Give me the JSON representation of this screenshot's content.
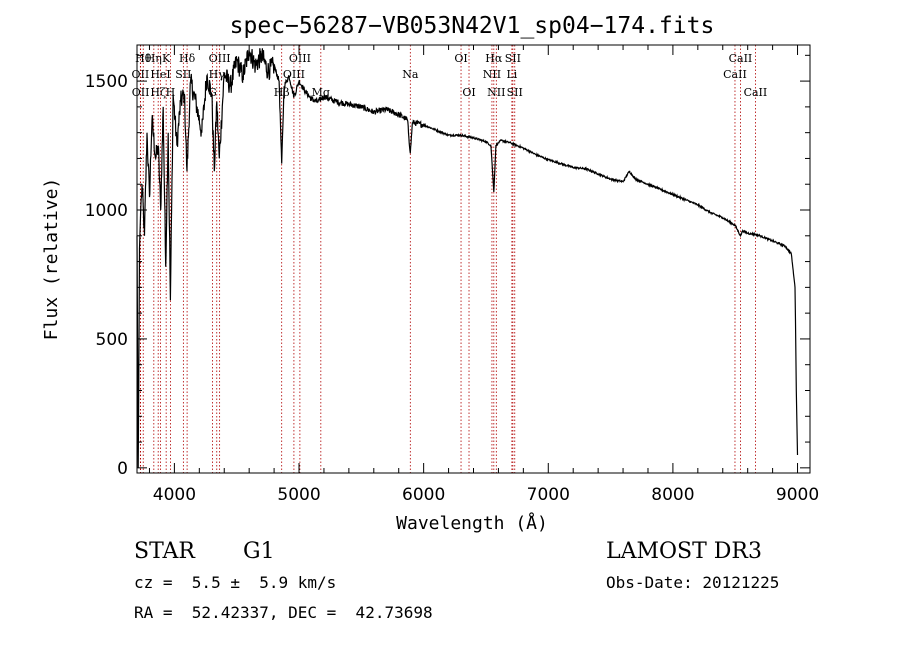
{
  "chart_data": {
    "type": "line",
    "title": "spec−56287−VB053N42V1_sp04−174.fits",
    "xlabel": "Wavelength (Å)",
    "ylabel": "Flux (relative)",
    "xlim": [
      3700,
      9100
    ],
    "ylim": [
      -20,
      1640
    ],
    "x_ticks": [
      4000,
      5000,
      6000,
      7000,
      8000,
      9000
    ],
    "y_ticks": [
      0,
      500,
      1000,
      1500
    ],
    "x_tick_labels": [
      "4000",
      "5000",
      "6000",
      "7000",
      "8000",
      "9000"
    ],
    "y_tick_labels": [
      "0",
      "500",
      "1000",
      "1500"
    ],
    "grid": false,
    "series": [
      {
        "name": "spectrum",
        "color": "#000000",
        "x": [
          3700,
          3710,
          3720,
          3730,
          3740,
          3760,
          3780,
          3800,
          3820,
          3850,
          3870,
          3890,
          3910,
          3930,
          3950,
          3968,
          3990,
          4020,
          4050,
          4080,
          4101,
          4130,
          4180,
          4220,
          4260,
          4300,
          4320,
          4340,
          4360,
          4400,
          4450,
          4500,
          4550,
          4600,
          4650,
          4700,
          4750,
          4800,
          4840,
          4861,
          4880,
          4920,
          4960,
          5000,
          5050,
          5100,
          5150,
          5200,
          5300,
          5400,
          5500,
          5600,
          5700,
          5800,
          5870,
          5893,
          5910,
          6000,
          6100,
          6200,
          6300,
          6400,
          6500,
          6540,
          6563,
          6580,
          6620,
          6700,
          6800,
          6900,
          7000,
          7100,
          7200,
          7300,
          7400,
          7500,
          7600,
          7650,
          7700,
          7800,
          7900,
          8000,
          8100,
          8200,
          8300,
          8400,
          8500,
          8542,
          8560,
          8600,
          8662,
          8700,
          8800,
          8900,
          8950,
          8980,
          8990,
          9000
        ],
        "values": [
          900,
          0,
          850,
          1000,
          1100,
          900,
          1300,
          1050,
          1350,
          1200,
          1250,
          1000,
          1400,
          780,
          1300,
          650,
          1450,
          1250,
          1420,
          1450,
          1150,
          1500,
          1400,
          1300,
          1520,
          1450,
          1150,
          1420,
          1200,
          1530,
          1480,
          1580,
          1520,
          1620,
          1560,
          1600,
          1540,
          1560,
          1500,
          1180,
          1480,
          1520,
          1440,
          1500,
          1460,
          1430,
          1420,
          1440,
          1420,
          1410,
          1400,
          1380,
          1390,
          1370,
          1350,
          1220,
          1340,
          1330,
          1310,
          1290,
          1290,
          1280,
          1265,
          1250,
          1070,
          1250,
          1270,
          1260,
          1240,
          1215,
          1195,
          1180,
          1165,
          1160,
          1140,
          1120,
          1110,
          1150,
          1120,
          1100,
          1080,
          1060,
          1040,
          1020,
          990,
          970,
          940,
          900,
          920,
          910,
          905,
          900,
          880,
          860,
          830,
          700,
          300,
          50
        ]
      }
    ],
    "lines": [
      {
        "label": "Hθ",
        "x": 3750,
        "row": 1
      },
      {
        "label": "OII",
        "x": 3727,
        "row": 2
      },
      {
        "label": "OII",
        "x": 3729,
        "row": 3
      },
      {
        "label": "Hη",
        "x": 3835,
        "row": 1
      },
      {
        "label": "HeI",
        "x": 3889,
        "row": 2
      },
      {
        "label": "Hζ",
        "x": 3870,
        "row": 3
      },
      {
        "label": "K",
        "x": 3934,
        "row": 1
      },
      {
        "label": "H",
        "x": 3968,
        "row": 3
      },
      {
        "label": "Hδ",
        "x": 4102,
        "row": 1
      },
      {
        "label": "SII",
        "x": 4072,
        "row": 2
      },
      {
        "label": "OIII",
        "x": 4363,
        "row": 1
      },
      {
        "label": "Hγ",
        "x": 4340,
        "row": 2
      },
      {
        "label": "G",
        "x": 4305,
        "row": 3
      },
      {
        "label": "OIII",
        "x": 5007,
        "row": 1
      },
      {
        "label": "OIII",
        "x": 4959,
        "row": 2
      },
      {
        "label": "Hβ",
        "x": 4861,
        "row": 3
      },
      {
        "label": "Mg",
        "x": 5175,
        "row": 3
      },
      {
        "label": "Na",
        "x": 5893,
        "row": 2
      },
      {
        "label": "OI",
        "x": 6300,
        "row": 1
      },
      {
        "label": "OI",
        "x": 6364,
        "row": 3
      },
      {
        "label": "Hα",
        "x": 6563,
        "row": 1
      },
      {
        "label": "NII",
        "x": 6548,
        "row": 2
      },
      {
        "label": "NII",
        "x": 6583,
        "row": 3
      },
      {
        "label": "SII",
        "x": 6716,
        "row": 1
      },
      {
        "label": "Li",
        "x": 6708,
        "row": 2
      },
      {
        "label": "SII",
        "x": 6731,
        "row": 3
      },
      {
        "label": "CaII",
        "x": 8542,
        "row": 1
      },
      {
        "label": "CaII",
        "x": 8498,
        "row": 2
      },
      {
        "label": "CaII",
        "x": 8662,
        "row": 3
      }
    ]
  },
  "info": {
    "object_class": "STAR",
    "subclass": "G1",
    "redshift": "cz =  5.5 ±  5.9 km/s",
    "coords": "RA =  52.42337, DEC =  42.73698",
    "survey": "LAMOST DR3",
    "obs_date": "Obs-Date: 20121225"
  }
}
